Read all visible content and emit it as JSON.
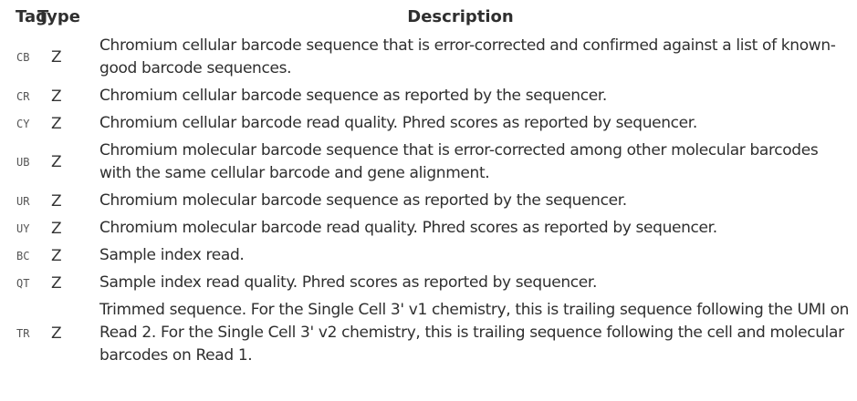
{
  "headers": {
    "tag": "Tag",
    "type": "Type",
    "description": "Description"
  },
  "rows": [
    {
      "tag": "CB",
      "type": "Z",
      "description": "Chromium cellular barcode sequence that is error-corrected and confirmed against a list of known-good barcode sequences."
    },
    {
      "tag": "CR",
      "type": "Z",
      "description": "Chromium cellular barcode sequence as reported by the sequencer."
    },
    {
      "tag": "CY",
      "type": "Z",
      "description": "Chromium cellular barcode read quality. Phred scores as reported by sequencer."
    },
    {
      "tag": "UB",
      "type": "Z",
      "description": "Chromium molecular barcode sequence that is error-corrected among other molecular barcodes with the same cellular barcode and gene alignment."
    },
    {
      "tag": "UR",
      "type": "Z",
      "description": "Chromium molecular barcode sequence as reported by the sequencer."
    },
    {
      "tag": "UY",
      "type": "Z",
      "description": "Chromium molecular barcode read quality. Phred scores as reported by sequencer."
    },
    {
      "tag": "BC",
      "type": "Z",
      "description": "Sample index read."
    },
    {
      "tag": "QT",
      "type": "Z",
      "description": "Sample index read quality. Phred scores as reported by sequencer."
    },
    {
      "tag": "TR",
      "type": "Z",
      "description": "Trimmed sequence. For the Single Cell 3' v1 chemistry, this is trailing sequence following the UMI on Read 2. For the Single Cell 3' v2 chemistry, this is trailing sequence following the cell and molecular barcodes on Read 1."
    }
  ]
}
